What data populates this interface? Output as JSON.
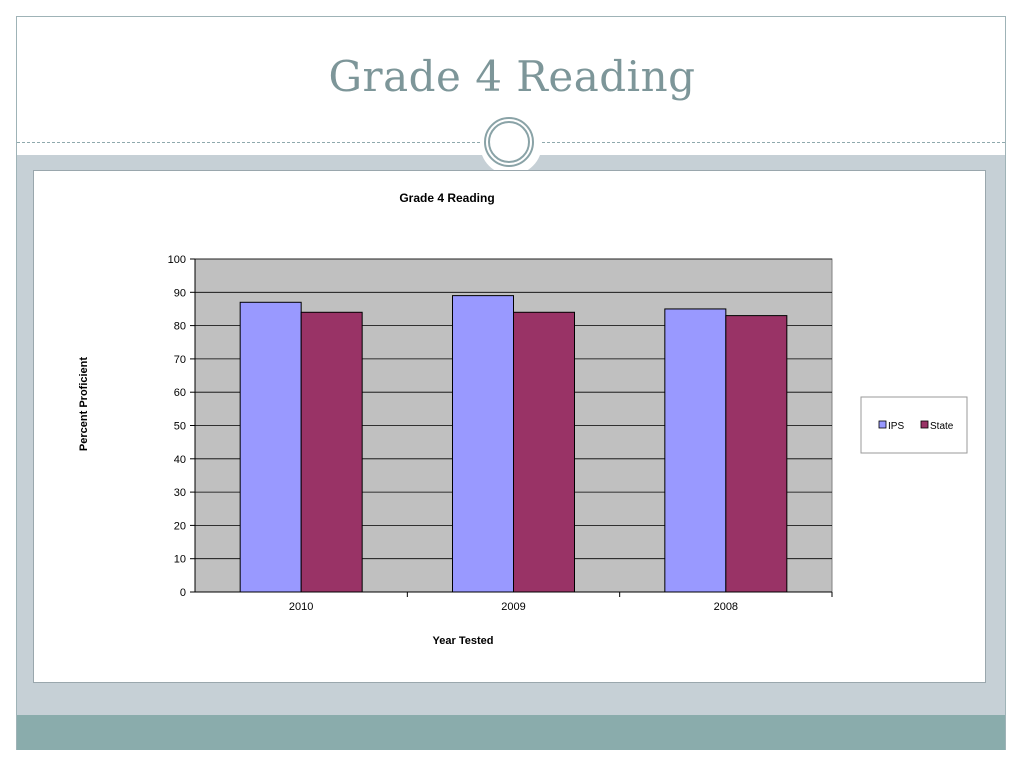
{
  "slide": {
    "title": "Grade 4 Reading"
  },
  "colors": {
    "ips": "#9999ff",
    "state": "#993366",
    "plot_bg": "#c0c0c0"
  },
  "chart_data": {
    "type": "bar",
    "title": "Grade 4 Reading",
    "xlabel": "Year Tested",
    "ylabel": "Percent Proficient",
    "categories": [
      "2010",
      "2009",
      "2008"
    ],
    "series": [
      {
        "name": "IPS",
        "values": [
          87,
          89,
          85
        ]
      },
      {
        "name": "State",
        "values": [
          84,
          84,
          83
        ]
      }
    ],
    "ylim": [
      0,
      100
    ],
    "yticks": [
      "0",
      "10",
      "20",
      "30",
      "40",
      "50",
      "60",
      "70",
      "80",
      "90",
      "100"
    ],
    "grid": true,
    "legend_position": "right"
  }
}
